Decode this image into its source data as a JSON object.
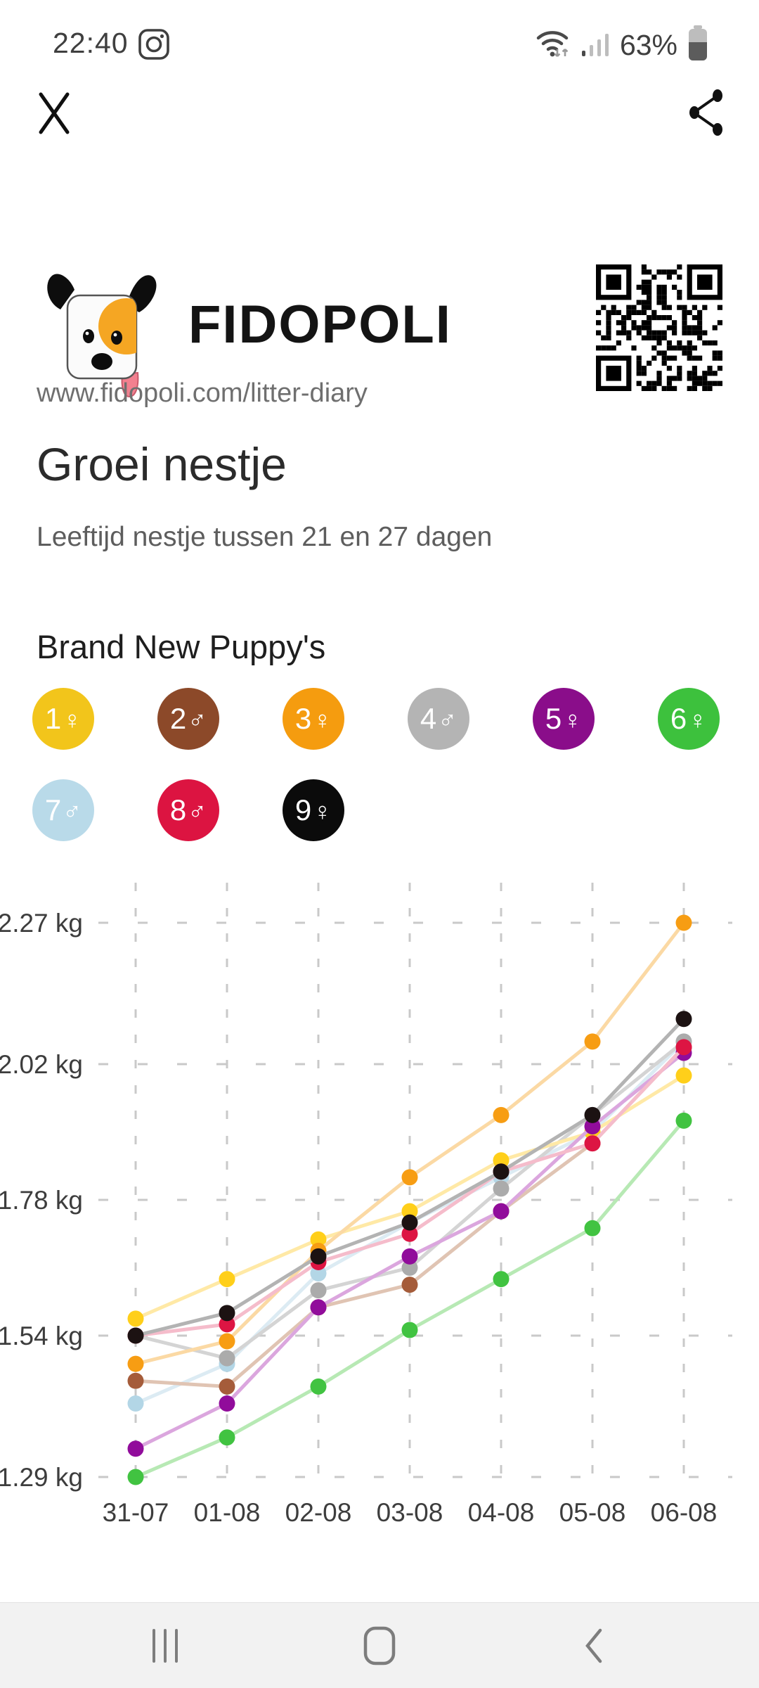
{
  "status_bar": {
    "time": "22:40",
    "battery_percent": "63%",
    "icons": [
      "instagram-icon",
      "wifi-icon",
      "signal-icon",
      "battery-icon"
    ]
  },
  "toolbar": {
    "close_icon": "close-icon",
    "share_icon": "share-icon"
  },
  "brand": {
    "name": "FIDOPOLI",
    "url": "www.fidopoli.com/litter-diary",
    "logo": "dog-logo",
    "qr": "qr-code"
  },
  "page": {
    "title": "Groei nestje",
    "subtitle": "Leeftijd nestje tussen 21 en 27 dagen"
  },
  "litter": {
    "heading": "Brand New Puppy's",
    "puppies": [
      {
        "label": "1",
        "sex": "female",
        "symbol": "♀",
        "color": "#F2C51B"
      },
      {
        "label": "2",
        "sex": "male",
        "symbol": "♂",
        "color": "#8C4929"
      },
      {
        "label": "3",
        "sex": "female",
        "symbol": "♀",
        "color": "#F59C0F"
      },
      {
        "label": "4",
        "sex": "male",
        "symbol": "♂",
        "color": "#B4B4B4"
      },
      {
        "label": "5",
        "sex": "female",
        "symbol": "♀",
        "color": "#8A0D8A"
      },
      {
        "label": "6",
        "sex": "female",
        "symbol": "♀",
        "color": "#3DC13D"
      },
      {
        "label": "7",
        "sex": "male",
        "symbol": "♂",
        "color": "#B9DAE9"
      },
      {
        "label": "8",
        "sex": "male",
        "symbol": "♂",
        "color": "#DC1441"
      },
      {
        "label": "9",
        "sex": "female",
        "symbol": "♀",
        "color": "#0B0B0B"
      }
    ]
  },
  "chart_data": {
    "type": "line",
    "title": "",
    "xlabel": "",
    "ylabel": "",
    "x": [
      "31-07",
      "01-08",
      "02-08",
      "03-08",
      "04-08",
      "05-08",
      "06-08"
    ],
    "yticks": [
      "2.27 kg",
      "2.02 kg",
      "1.78 kg",
      "1.54 kg",
      "1.29 kg"
    ],
    "ytick_values": [
      2.27,
      2.02,
      1.78,
      1.54,
      1.29
    ],
    "ylim": [
      1.29,
      2.27
    ],
    "grid": "dashed",
    "legend_position": "none",
    "series": [
      {
        "name": "Puppy 1 (yellow, female)",
        "dot_color": "#FFCF1A",
        "line_color": "#FFE9A6",
        "values": [
          1.57,
          1.64,
          1.71,
          1.76,
          1.85,
          1.9,
          2.0
        ]
      },
      {
        "name": "Puppy 2 (brown, male)",
        "dot_color": "#A55C3A",
        "line_color": "#E0C4B3",
        "values": [
          1.46,
          1.45,
          1.59,
          1.63,
          1.76,
          1.88,
          2.05
        ]
      },
      {
        "name": "Puppy 3 (orange, female)",
        "dot_color": "#F79D13",
        "line_color": "#FBD9A4",
        "values": [
          1.49,
          1.53,
          1.69,
          1.82,
          1.93,
          2.06,
          2.27
        ]
      },
      {
        "name": "Puppy 4 (gray, male)",
        "dot_color": "#ABABAB",
        "line_color": "#D4D4D4",
        "values": [
          1.54,
          1.5,
          1.62,
          1.66,
          1.8,
          1.93,
          2.06
        ]
      },
      {
        "name": "Puppy 5 (purple, female)",
        "dot_color": "#910C9B",
        "line_color": "#DBA6DE",
        "values": [
          1.34,
          1.42,
          1.59,
          1.68,
          1.76,
          1.91,
          2.04
        ]
      },
      {
        "name": "Puppy 6 (green, female)",
        "dot_color": "#41C341",
        "line_color": "#B7E9B4",
        "values": [
          1.29,
          1.36,
          1.45,
          1.55,
          1.64,
          1.73,
          1.92
        ]
      },
      {
        "name": "Puppy 7 (light blue, male)",
        "dot_color": "#B3D6E6",
        "line_color": "#DCEBF3",
        "values": [
          1.42,
          1.49,
          1.65,
          1.74,
          1.82,
          1.9,
          2.06
        ]
      },
      {
        "name": "Puppy 8 (red, male)",
        "dot_color": "#DD1543",
        "line_color": "#F5BCCB",
        "values": [
          1.54,
          1.56,
          1.67,
          1.72,
          1.83,
          1.88,
          2.05
        ]
      },
      {
        "name": "Puppy 9 (black, female)",
        "dot_color": "#1C1212",
        "line_color": "#B3B3B3",
        "values": [
          1.54,
          1.58,
          1.68,
          1.74,
          1.83,
          1.93,
          2.1
        ]
      }
    ]
  },
  "nav_bar": {
    "icons": [
      "recents-icon",
      "home-icon",
      "back-icon"
    ]
  }
}
